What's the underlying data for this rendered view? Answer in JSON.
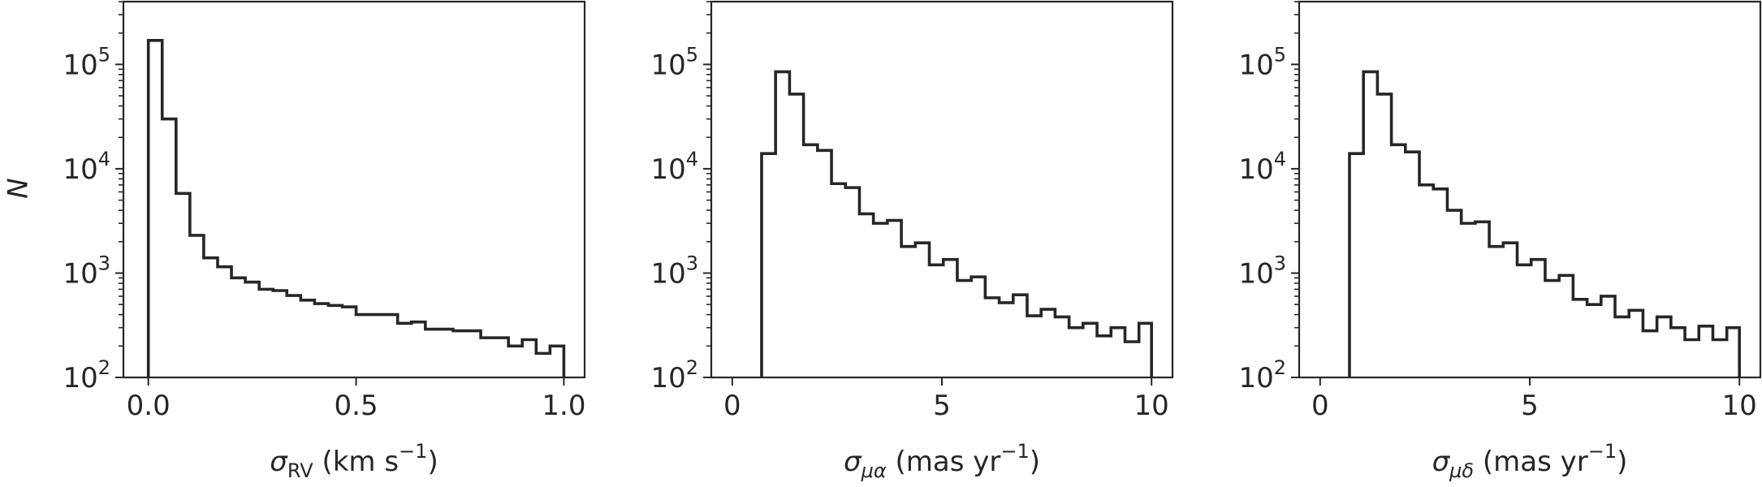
{
  "figure": {
    "ylabel": "N"
  },
  "chart_data": [
    {
      "type": "histogram",
      "xlabel": {
        "base": "σ",
        "sub": "RV",
        "units": " (km s",
        "sup": "−1",
        "close": ")"
      },
      "ylabel": "N",
      "y_scale": "log",
      "xlim": [
        -0.06,
        1.05
      ],
      "ylim": [
        100,
        400000
      ],
      "xticks": [
        0.0,
        0.5,
        1.0
      ],
      "xtick_labels": [
        "0.0",
        "0.5",
        "1.0"
      ],
      "yticks": [
        100,
        1000,
        10000,
        100000
      ],
      "ytick_labels": [
        {
          "base": "10",
          "exp": "2"
        },
        {
          "base": "10",
          "exp": "3"
        },
        {
          "base": "10",
          "exp": "4"
        },
        {
          "base": "10",
          "exp": "5"
        }
      ],
      "bin_edges": [
        0.0,
        0.0333,
        0.0667,
        0.1,
        0.1333,
        0.1667,
        0.2,
        0.2333,
        0.2667,
        0.3,
        0.3333,
        0.3667,
        0.4,
        0.4333,
        0.4667,
        0.5,
        0.5333,
        0.5667,
        0.6,
        0.6333,
        0.6667,
        0.7,
        0.7333,
        0.7667,
        0.8,
        0.8333,
        0.8667,
        0.9,
        0.9333,
        0.9667,
        1.0
      ],
      "counts": [
        170000,
        30000,
        5800,
        2300,
        1400,
        1150,
        900,
        820,
        700,
        680,
        610,
        550,
        510,
        490,
        475,
        400,
        400,
        400,
        330,
        340,
        290,
        290,
        280,
        280,
        240,
        240,
        200,
        230,
        170,
        200
      ],
      "grid": false
    },
    {
      "type": "histogram",
      "xlabel": {
        "base": "σ",
        "sub": "μα",
        "units": " (mas yr",
        "sup": "−1",
        "close": ")"
      },
      "y_scale": "log",
      "xlim": [
        -0.5,
        10.5
      ],
      "ylim": [
        100,
        400000
      ],
      "xticks": [
        0,
        5,
        10
      ],
      "xtick_labels": [
        "0",
        "5",
        "10"
      ],
      "yticks": [
        100,
        1000,
        10000,
        100000
      ],
      "ytick_labels": [
        {
          "base": "10",
          "exp": "2"
        },
        {
          "base": "10",
          "exp": "3"
        },
        {
          "base": "10",
          "exp": "4"
        },
        {
          "base": "10",
          "exp": "5"
        }
      ],
      "bin_edges": [
        0.7,
        1.0333,
        1.3667,
        1.7,
        2.0333,
        2.3667,
        2.7,
        3.0333,
        3.3667,
        3.7,
        4.0333,
        4.3667,
        4.7,
        5.0333,
        5.3667,
        5.7,
        6.0333,
        6.3667,
        6.7,
        7.0333,
        7.3667,
        7.7,
        8.0333,
        8.3667,
        8.7,
        9.0333,
        9.3667,
        9.7,
        10.0
      ],
      "counts": [
        14000,
        85000,
        52000,
        17000,
        15000,
        7200,
        6600,
        3700,
        3000,
        3200,
        1800,
        1950,
        1200,
        1350,
        850,
        920,
        580,
        520,
        620,
        390,
        450,
        380,
        300,
        330,
        250,
        300,
        220,
        330
      ],
      "grid": false
    },
    {
      "type": "histogram",
      "xlabel": {
        "base": "σ",
        "sub": "μδ",
        "units": " (mas yr",
        "sup": "−1",
        "close": ")"
      },
      "y_scale": "log",
      "xlim": [
        -0.5,
        10.5
      ],
      "ylim": [
        100,
        400000
      ],
      "xticks": [
        0,
        5,
        10
      ],
      "xtick_labels": [
        "0",
        "5",
        "10"
      ],
      "yticks": [
        100,
        1000,
        10000,
        100000
      ],
      "ytick_labels": [
        {
          "base": "10",
          "exp": "2"
        },
        {
          "base": "10",
          "exp": "3"
        },
        {
          "base": "10",
          "exp": "4"
        },
        {
          "base": "10",
          "exp": "5"
        }
      ],
      "bin_edges": [
        0.7,
        1.0333,
        1.3667,
        1.7,
        2.0333,
        2.3667,
        2.7,
        3.0333,
        3.3667,
        3.7,
        4.0333,
        4.3667,
        4.7,
        5.0333,
        5.3667,
        5.7,
        6.0333,
        6.3667,
        6.7,
        7.0333,
        7.3667,
        7.7,
        8.0333,
        8.3667,
        8.7,
        9.0333,
        9.3667,
        9.7,
        10.0
      ],
      "counts": [
        14000,
        85000,
        52000,
        17000,
        14500,
        7000,
        6400,
        4000,
        3000,
        3100,
        1800,
        1950,
        1200,
        1350,
        850,
        950,
        560,
        500,
        600,
        380,
        440,
        280,
        380,
        300,
        230,
        310,
        230,
        300
      ],
      "grid": false
    }
  ]
}
